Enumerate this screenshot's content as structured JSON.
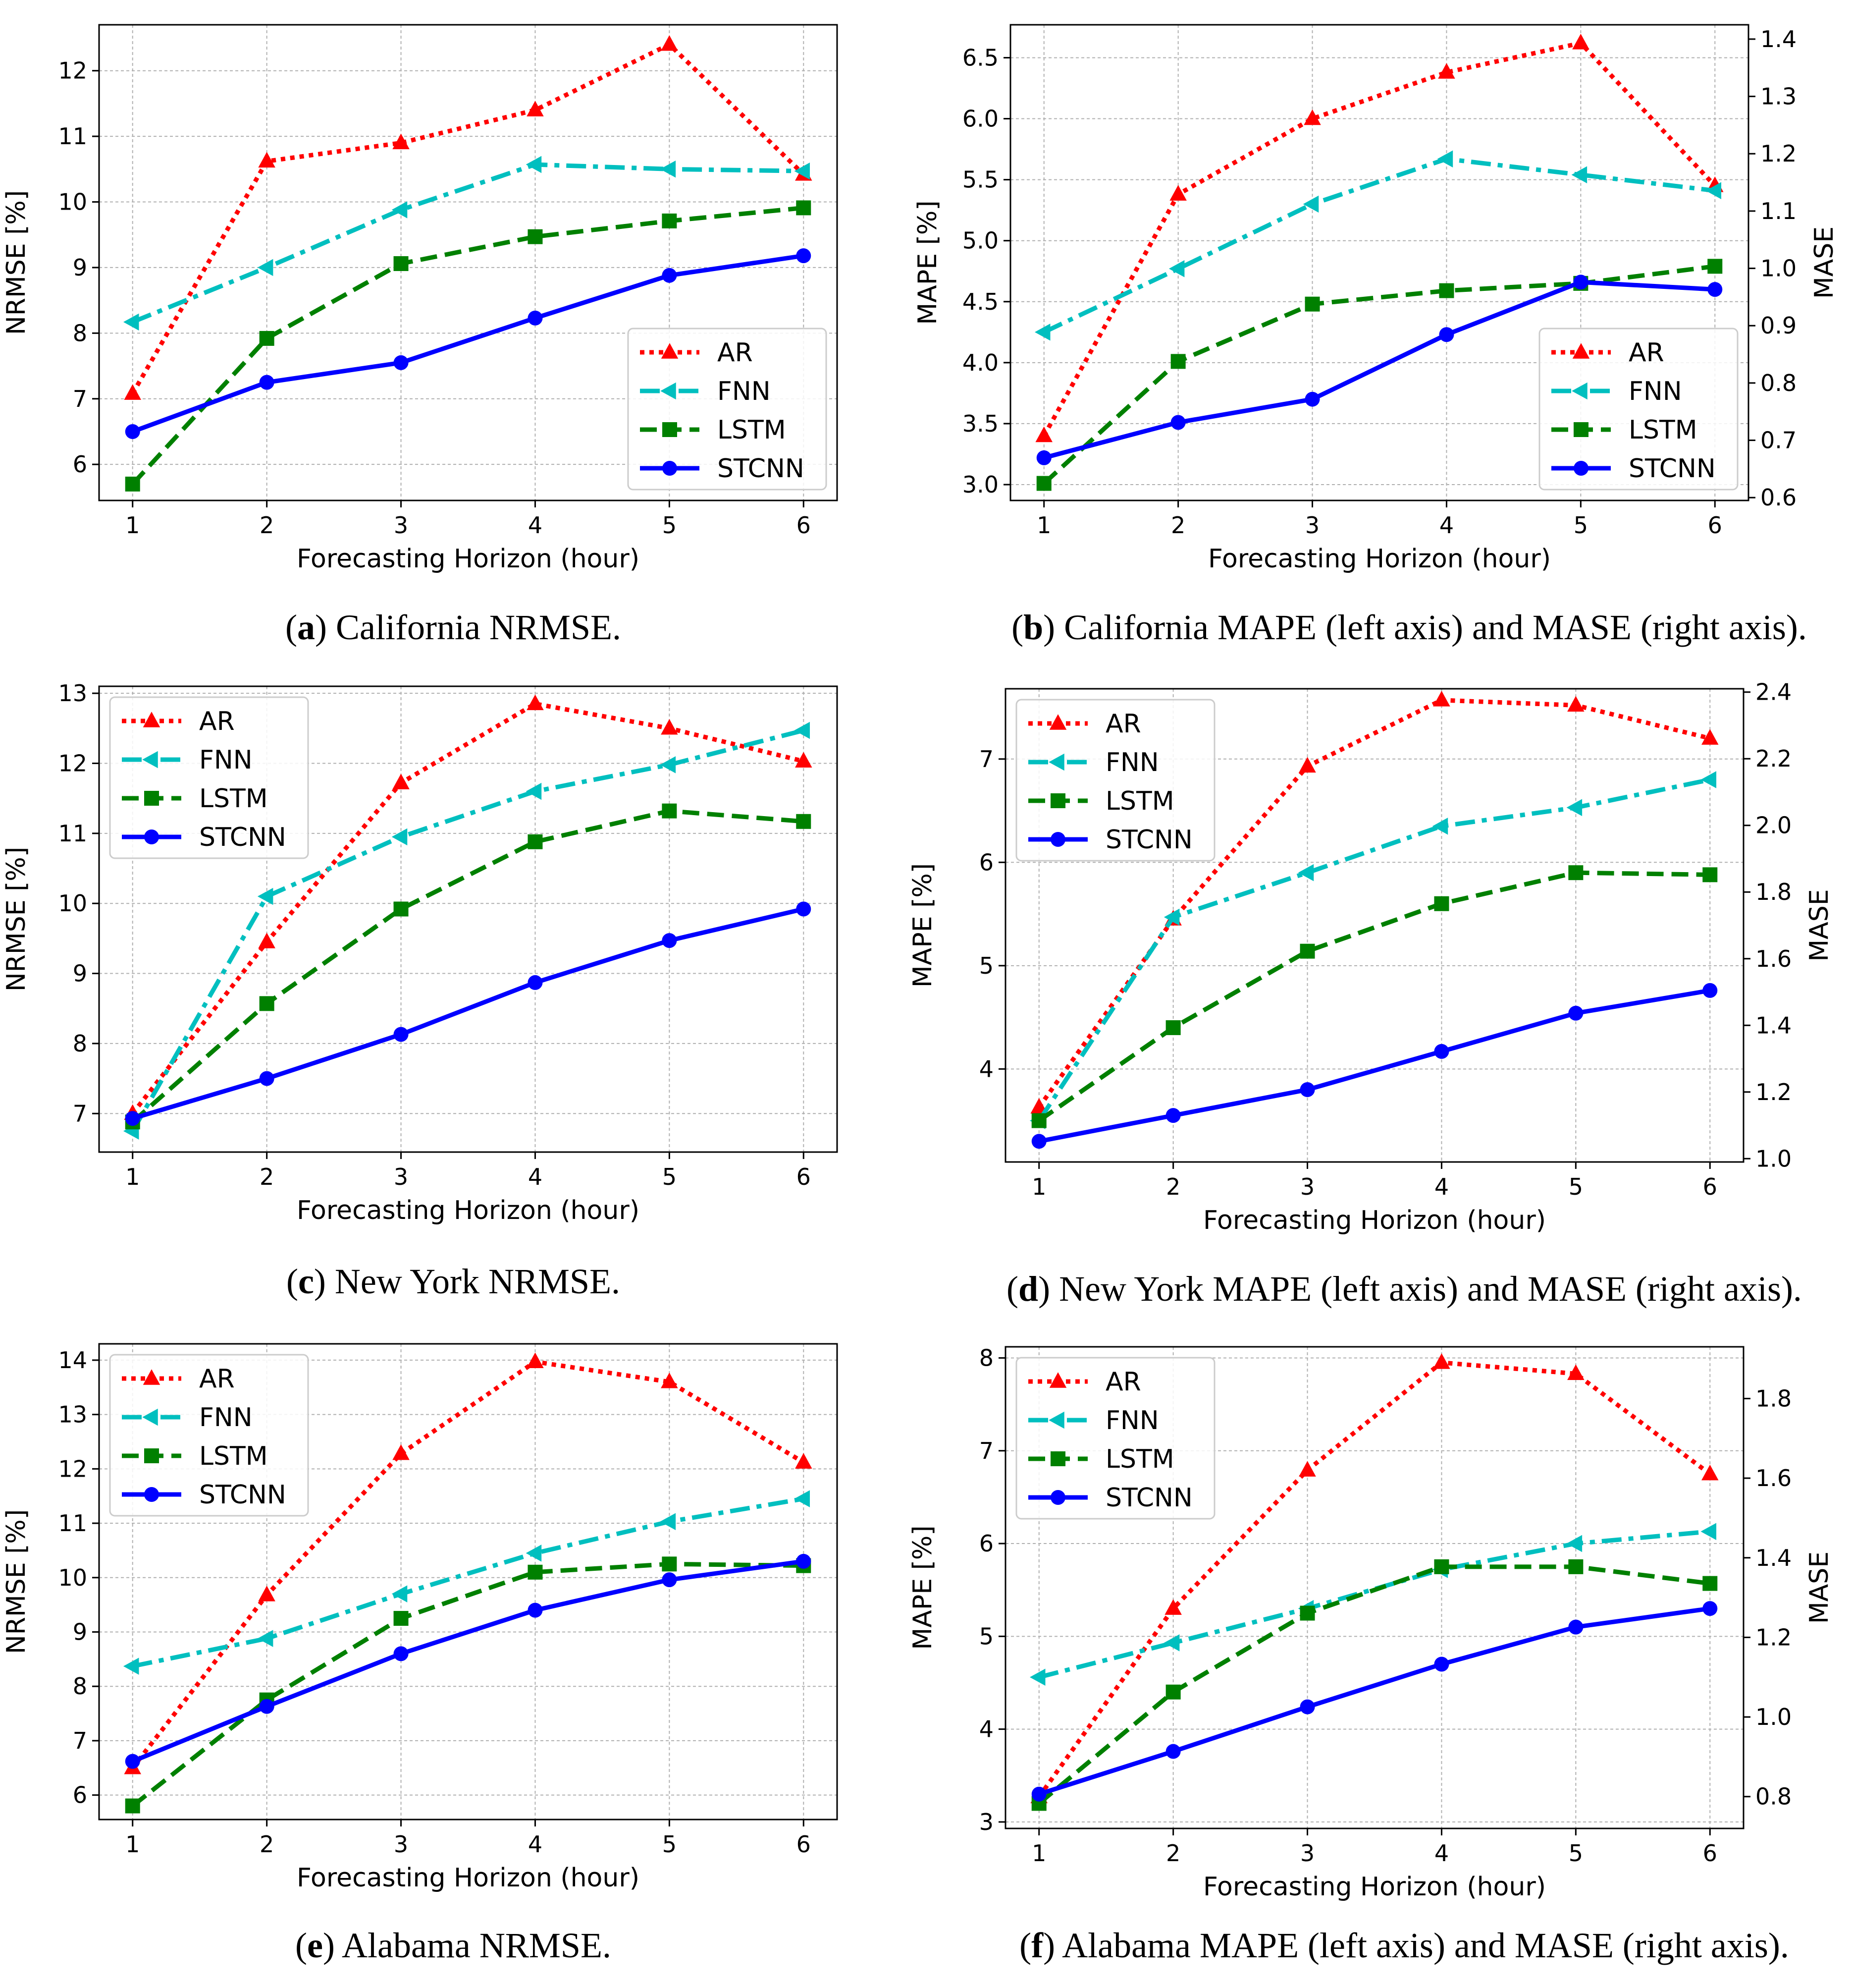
{
  "xlabel": "Forecasting Horizon (hour)",
  "legend_labels": [
    "AR",
    "FNN",
    "LSTM",
    "STCNN"
  ],
  "series_colors": {
    "AR": "#ff0000",
    "FNN": "#00bfbf",
    "LSTM": "#008000",
    "STCNN": "#0000ff"
  },
  "chart_data": [
    {
      "id": "a",
      "type": "line",
      "caption_letter": "a",
      "caption_text": " California NRMSE.",
      "ylabel": "NRMSE [%]",
      "ylabel_right": "",
      "x": [
        1,
        2,
        3,
        4,
        5,
        6
      ],
      "xlim": [
        0.75,
        6.25
      ],
      "ylim": [
        5.45,
        12.7
      ],
      "yticks": [
        6,
        7,
        8,
        9,
        10,
        11,
        12
      ],
      "right_ylim": null,
      "right_yticks": [],
      "legend_loc": "lower right",
      "grid": true,
      "series": [
        {
          "name": "AR",
          "values": [
            7.08,
            10.62,
            10.9,
            11.4,
            12.4,
            10.42
          ]
        },
        {
          "name": "FNN",
          "values": [
            8.17,
            9.0,
            9.88,
            10.57,
            10.5,
            10.47
          ]
        },
        {
          "name": "LSTM",
          "values": [
            5.7,
            7.92,
            9.06,
            9.47,
            9.71,
            9.91
          ]
        },
        {
          "name": "STCNN",
          "values": [
            6.5,
            7.25,
            7.55,
            8.23,
            8.88,
            9.18
          ]
        }
      ]
    },
    {
      "id": "b",
      "type": "line",
      "caption_letter": "b",
      "caption_text": " California MAPE (left axis) and MASE (right axis).",
      "ylabel": "MAPE [%]",
      "ylabel_right": "MASE",
      "x": [
        1,
        2,
        3,
        4,
        5,
        6
      ],
      "xlim": [
        0.75,
        6.25
      ],
      "ylim": [
        2.87,
        6.77
      ],
      "yticks": [
        3.0,
        3.5,
        4.0,
        4.5,
        5.0,
        5.5,
        6.0,
        6.5
      ],
      "right_ylim": [
        0.595,
        1.425
      ],
      "right_yticks": [
        0.6,
        0.7,
        0.8,
        0.9,
        1.0,
        1.1,
        1.2,
        1.3,
        1.4
      ],
      "legend_loc": "lower right",
      "grid": true,
      "series": [
        {
          "name": "AR",
          "values": [
            3.4,
            5.38,
            6.0,
            6.38,
            6.62,
            5.45
          ]
        },
        {
          "name": "FNN",
          "values": [
            4.25,
            4.77,
            5.3,
            5.67,
            5.54,
            5.41
          ]
        },
        {
          "name": "LSTM",
          "values": [
            3.01,
            4.01,
            4.48,
            4.59,
            4.65,
            4.79
          ]
        },
        {
          "name": "STCNN",
          "values": [
            3.22,
            3.51,
            3.7,
            4.23,
            4.66,
            4.6
          ]
        }
      ]
    },
    {
      "id": "c",
      "type": "line",
      "caption_letter": "c",
      "caption_text": " New York NRMSE.",
      "ylabel": "NRMSE [%]",
      "ylabel_right": "",
      "x": [
        1,
        2,
        3,
        4,
        5,
        6
      ],
      "xlim": [
        0.75,
        6.25
      ],
      "ylim": [
        6.45,
        13.1
      ],
      "yticks": [
        7,
        8,
        9,
        10,
        11,
        12,
        13
      ],
      "right_ylim": null,
      "right_yticks": [],
      "legend_loc": "upper left",
      "grid": true,
      "series": [
        {
          "name": "AR",
          "values": [
            7.0,
            9.45,
            11.72,
            12.85,
            12.5,
            12.03
          ]
        },
        {
          "name": "FNN",
          "values": [
            6.75,
            10.1,
            10.95,
            11.6,
            11.98,
            12.47
          ]
        },
        {
          "name": "LSTM",
          "values": [
            6.88,
            8.57,
            9.92,
            10.88,
            11.32,
            11.17
          ]
        },
        {
          "name": "STCNN",
          "values": [
            6.93,
            7.5,
            8.13,
            8.87,
            9.47,
            9.92
          ]
        }
      ]
    },
    {
      "id": "d",
      "type": "line",
      "caption_letter": "d",
      "caption_text": " New York MAPE (left axis) and MASE (right axis).",
      "ylabel": "MAPE [%]",
      "ylabel_right": "MASE",
      "x": [
        1,
        2,
        3,
        4,
        5,
        6
      ],
      "xlim": [
        0.75,
        6.25
      ],
      "ylim": [
        3.1,
        7.68
      ],
      "yticks": [
        4,
        5,
        6,
        7
      ],
      "right_ylim": [
        0.99,
        2.41
      ],
      "right_yticks": [
        1.0,
        1.2,
        1.4,
        1.6,
        1.8,
        2.0,
        2.2,
        2.4
      ],
      "legend_loc": "upper left",
      "grid": true,
      "series": [
        {
          "name": "AR",
          "values": [
            3.63,
            5.45,
            6.93,
            7.57,
            7.52,
            7.2
          ]
        },
        {
          "name": "FNN",
          "values": [
            3.5,
            5.47,
            5.9,
            6.35,
            6.53,
            6.8
          ]
        },
        {
          "name": "LSTM",
          "values": [
            3.5,
            4.4,
            5.14,
            5.6,
            5.9,
            5.88
          ]
        },
        {
          "name": "STCNN",
          "values": [
            3.3,
            3.55,
            3.8,
            4.17,
            4.54,
            4.76
          ]
        }
      ]
    },
    {
      "id": "e",
      "type": "line",
      "caption_letter": "e",
      "caption_text": " Alabama NRMSE.",
      "ylabel": "NRMSE [%]",
      "ylabel_right": "",
      "x": [
        1,
        2,
        3,
        4,
        5,
        6
      ],
      "xlim": [
        0.75,
        6.25
      ],
      "ylim": [
        5.55,
        14.3
      ],
      "yticks": [
        6,
        7,
        8,
        9,
        10,
        11,
        12,
        13,
        14
      ],
      "right_ylim": null,
      "right_yticks": [],
      "legend_loc": "upper left",
      "grid": true,
      "series": [
        {
          "name": "AR",
          "values": [
            6.5,
            9.68,
            12.28,
            13.97,
            13.6,
            12.12
          ]
        },
        {
          "name": "FNN",
          "values": [
            8.37,
            8.88,
            9.7,
            10.45,
            11.03,
            11.45
          ]
        },
        {
          "name": "LSTM",
          "values": [
            5.8,
            7.75,
            9.25,
            10.1,
            10.25,
            10.22
          ]
        },
        {
          "name": "STCNN",
          "values": [
            6.62,
            7.63,
            8.6,
            9.4,
            9.96,
            10.3
          ]
        }
      ]
    },
    {
      "id": "f",
      "type": "line",
      "caption_letter": "f",
      "caption_text": " Alabama MAPE (left axis) and MASE (right axis).",
      "ylabel": "MAPE [%]",
      "ylabel_right": "MASE",
      "x": [
        1,
        2,
        3,
        4,
        5,
        6
      ],
      "xlim": [
        0.75,
        6.25
      ],
      "ylim": [
        2.93,
        8.12
      ],
      "yticks": [
        3,
        4,
        5,
        6,
        7,
        8
      ],
      "right_ylim": [
        0.72,
        1.93
      ],
      "right_yticks": [
        0.8,
        1.0,
        1.2,
        1.4,
        1.6,
        1.8
      ],
      "legend_loc": "upper left",
      "grid": true,
      "series": [
        {
          "name": "AR",
          "values": [
            3.27,
            5.3,
            6.79,
            7.95,
            7.83,
            6.75
          ]
        },
        {
          "name": "FNN",
          "values": [
            4.56,
            4.93,
            5.3,
            5.72,
            6.0,
            6.13
          ]
        },
        {
          "name": "LSTM",
          "values": [
            3.2,
            4.4,
            5.25,
            5.75,
            5.75,
            5.57
          ]
        },
        {
          "name": "STCNN",
          "values": [
            3.3,
            3.76,
            4.24,
            4.7,
            5.1,
            5.3
          ]
        }
      ]
    }
  ]
}
